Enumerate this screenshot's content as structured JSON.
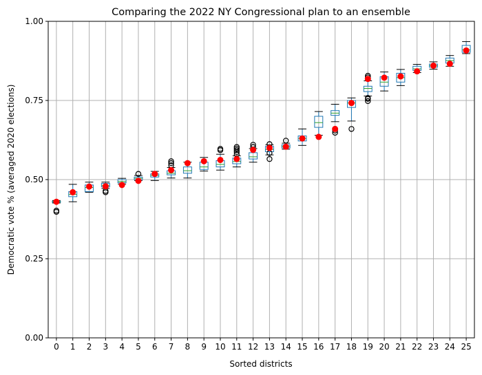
{
  "chart_data": {
    "type": "box",
    "title": "Comparing the 2022 NY Congressional plan to an ensemble",
    "xlabel": "Sorted districts",
    "ylabel": "Democratic vote % (averaged 2020 elections)",
    "ylim": [
      0,
      1
    ],
    "yticks": [
      "0.00",
      "0.25",
      "0.50",
      "0.75",
      "1.00"
    ],
    "categories": [
      "0",
      "1",
      "2",
      "3",
      "4",
      "5",
      "6",
      "7",
      "8",
      "9",
      "10",
      "11",
      "12",
      "13",
      "14",
      "15",
      "16",
      "17",
      "18",
      "19",
      "20",
      "21",
      "22",
      "23",
      "24",
      "25"
    ],
    "grid": true,
    "colors": {
      "box": "#1f77b4",
      "median": "#2ca02c",
      "plan_point": "#ff0000",
      "whisker": "#000000",
      "outlier": "#000000",
      "grid": "#b0b0b0"
    },
    "ensemble_boxes": [
      {
        "q1": 0.428,
        "median": 0.43,
        "q3": 0.432,
        "whislo": 0.426,
        "whishi": 0.434,
        "fliers": [
          0.398,
          0.402
        ]
      },
      {
        "q1": 0.446,
        "median": 0.453,
        "q3": 0.462,
        "whislo": 0.43,
        "whishi": 0.485,
        "fliers": []
      },
      {
        "q1": 0.462,
        "median": 0.475,
        "q3": 0.483,
        "whislo": 0.46,
        "whishi": 0.492,
        "fliers": []
      },
      {
        "q1": 0.477,
        "median": 0.482,
        "q3": 0.488,
        "whislo": 0.472,
        "whishi": 0.492,
        "fliers": [
          0.46,
          0.464
        ]
      },
      {
        "q1": 0.49,
        "median": 0.494,
        "q3": 0.5,
        "whislo": 0.486,
        "whishi": 0.504,
        "fliers": []
      },
      {
        "q1": 0.5,
        "median": 0.504,
        "q3": 0.508,
        "whislo": 0.497,
        "whishi": 0.513,
        "fliers": [
          0.518
        ]
      },
      {
        "q1": 0.508,
        "median": 0.513,
        "q3": 0.518,
        "whislo": 0.497,
        "whishi": 0.526,
        "fliers": []
      },
      {
        "q1": 0.515,
        "median": 0.52,
        "q3": 0.528,
        "whislo": 0.505,
        "whishi": 0.538,
        "fliers": [
          0.545,
          0.552,
          0.558
        ]
      },
      {
        "q1": 0.52,
        "median": 0.528,
        "q3": 0.54,
        "whislo": 0.505,
        "whishi": 0.555,
        "fliers": []
      },
      {
        "q1": 0.532,
        "median": 0.54,
        "q3": 0.555,
        "whislo": 0.527,
        "whishi": 0.57,
        "fliers": []
      },
      {
        "q1": 0.54,
        "median": 0.548,
        "q3": 0.56,
        "whislo": 0.53,
        "whishi": 0.58,
        "fliers": [
          0.593,
          0.597
        ]
      },
      {
        "q1": 0.55,
        "median": 0.557,
        "q3": 0.568,
        "whislo": 0.54,
        "whishi": 0.575,
        "fliers": [
          0.58,
          0.587,
          0.593,
          0.598,
          0.603
        ]
      },
      {
        "q1": 0.565,
        "median": 0.572,
        "q3": 0.585,
        "whislo": 0.555,
        "whishi": 0.598,
        "fliers": [
          0.603,
          0.61
        ]
      },
      {
        "q1": 0.588,
        "median": 0.595,
        "q3": 0.605,
        "whislo": 0.578,
        "whishi": 0.61,
        "fliers": [
          0.565,
          0.584,
          0.612
        ]
      },
      {
        "q1": 0.6,
        "median": 0.605,
        "q3": 0.61,
        "whislo": 0.596,
        "whishi": 0.615,
        "fliers": [
          0.623
        ]
      },
      {
        "q1": 0.622,
        "median": 0.63,
        "q3": 0.638,
        "whislo": 0.608,
        "whishi": 0.66,
        "fliers": []
      },
      {
        "q1": 0.665,
        "median": 0.68,
        "q3": 0.7,
        "whislo": 0.64,
        "whishi": 0.715,
        "fliers": []
      },
      {
        "q1": 0.703,
        "median": 0.71,
        "q3": 0.718,
        "whislo": 0.683,
        "whishi": 0.738,
        "fliers": [
          0.648,
          0.655,
          0.66
        ]
      },
      {
        "q1": 0.728,
        "median": 0.742,
        "q3": 0.75,
        "whislo": 0.685,
        "whishi": 0.758,
        "fliers": [
          0.66
        ]
      },
      {
        "q1": 0.778,
        "median": 0.788,
        "q3": 0.795,
        "whislo": 0.764,
        "whishi": 0.812,
        "fliers": [
          0.748,
          0.755,
          0.758,
          0.818,
          0.823,
          0.828
        ]
      },
      {
        "q1": 0.795,
        "median": 0.808,
        "q3": 0.825,
        "whislo": 0.78,
        "whishi": 0.84,
        "fliers": []
      },
      {
        "q1": 0.808,
        "median": 0.822,
        "q3": 0.836,
        "whislo": 0.797,
        "whishi": 0.848,
        "fliers": []
      },
      {
        "q1": 0.845,
        "median": 0.85,
        "q3": 0.858,
        "whislo": 0.838,
        "whishi": 0.864,
        "fliers": []
      },
      {
        "q1": 0.855,
        "median": 0.86,
        "q3": 0.865,
        "whislo": 0.849,
        "whishi": 0.872,
        "fliers": []
      },
      {
        "q1": 0.868,
        "median": 0.876,
        "q3": 0.884,
        "whislo": 0.858,
        "whishi": 0.892,
        "fliers": []
      },
      {
        "q1": 0.902,
        "median": 0.91,
        "q3": 0.924,
        "whislo": 0.898,
        "whishi": 0.936,
        "fliers": []
      }
    ],
    "plan_values": [
      0.43,
      0.46,
      0.478,
      0.479,
      0.483,
      0.496,
      0.518,
      0.53,
      0.552,
      0.558,
      0.562,
      0.565,
      0.594,
      0.6,
      0.604,
      0.63,
      0.635,
      0.66,
      0.742,
      0.818,
      0.822,
      0.826,
      0.842,
      0.86,
      0.866,
      0.908
    ]
  }
}
